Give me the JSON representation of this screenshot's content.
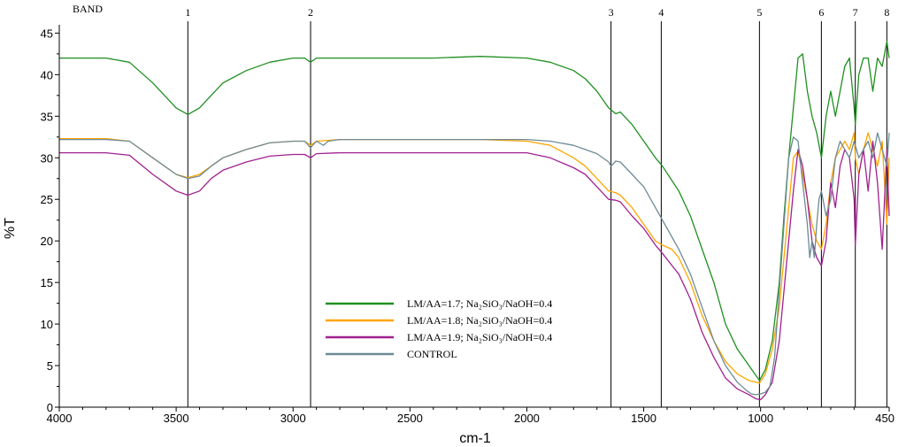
{
  "chart_data": {
    "type": "line",
    "xlabel": "cm-1",
    "ylabel": "%T",
    "xlim": [
      4000,
      450
    ],
    "ylim": [
      0,
      46
    ],
    "x_ticks": [
      4000,
      3500,
      3000,
      2500,
      2000,
      1500,
      1000,
      450
    ],
    "y_ticks": [
      0,
      5,
      10,
      15,
      20,
      25,
      30,
      35,
      40,
      45
    ],
    "band_title": "BAND",
    "bands": [
      {
        "label": "1",
        "x": 3450
      },
      {
        "label": "2",
        "x": 2925
      },
      {
        "label": "3",
        "x": 1640
      },
      {
        "label": "4",
        "x": 1425
      },
      {
        "label": "5",
        "x": 1005
      },
      {
        "label": "6",
        "x": 740
      },
      {
        "label": "7",
        "x": 595
      },
      {
        "label": "8",
        "x": 460
      }
    ],
    "series": [
      {
        "name": "LM/AA=1.7; Na₂SiO₃/NaOH=0.4",
        "color": "#1f8f1f",
        "x": [
          4000,
          3800,
          3700,
          3600,
          3500,
          3450,
          3400,
          3350,
          3300,
          3200,
          3100,
          3000,
          2950,
          2925,
          2900,
          2800,
          2600,
          2400,
          2200,
          2000,
          1900,
          1800,
          1750,
          1700,
          1650,
          1620,
          1600,
          1550,
          1500,
          1450,
          1420,
          1350,
          1300,
          1250,
          1200,
          1150,
          1100,
          1050,
          1020,
          1005,
          980,
          950,
          920,
          900,
          880,
          860,
          840,
          820,
          800,
          780,
          760,
          740,
          720,
          700,
          680,
          660,
          640,
          620,
          600,
          595,
          580,
          560,
          540,
          520,
          500,
          480,
          460,
          450
        ],
        "y": [
          42,
          42,
          41.5,
          39,
          36,
          35.2,
          36,
          37.5,
          39,
          40.5,
          41.5,
          42,
          42,
          41.5,
          42,
          42,
          42,
          42,
          42.2,
          42,
          41.5,
          40.5,
          39.5,
          38,
          36,
          35.3,
          35.5,
          34,
          32,
          30,
          29,
          26,
          23,
          19,
          15,
          10,
          7,
          5,
          3.8,
          3.2,
          4.5,
          8,
          15,
          23,
          30,
          36,
          42,
          42.5,
          38,
          35,
          33,
          30,
          35,
          38,
          35,
          38,
          41,
          42,
          36,
          34,
          40,
          42,
          42,
          38,
          42,
          41,
          44,
          42
        ]
      },
      {
        "name": "LM/AA=1.8; Na₂SiO₃/NaOH=0.4",
        "color": "#ffa500",
        "x": [
          4000,
          3800,
          3700,
          3600,
          3500,
          3450,
          3400,
          3350,
          3300,
          3200,
          3100,
          3000,
          2950,
          2925,
          2900,
          2800,
          2600,
          2400,
          2200,
          2000,
          1900,
          1800,
          1750,
          1700,
          1650,
          1620,
          1600,
          1550,
          1500,
          1450,
          1420,
          1380,
          1350,
          1300,
          1250,
          1200,
          1150,
          1100,
          1050,
          1020,
          1005,
          980,
          950,
          920,
          900,
          880,
          860,
          840,
          820,
          800,
          780,
          760,
          740,
          720,
          700,
          680,
          660,
          640,
          620,
          600,
          595,
          580,
          560,
          540,
          520,
          500,
          480,
          460,
          450
        ],
        "y": [
          32.3,
          32.3,
          32,
          30,
          28,
          27.6,
          28,
          29,
          30,
          31,
          31.8,
          32,
          32,
          31.5,
          32,
          32.2,
          32.2,
          32.2,
          32.2,
          32,
          31.5,
          30,
          29,
          27.5,
          26,
          25.8,
          25.5,
          24,
          22,
          20,
          19.5,
          19,
          18,
          15,
          11,
          8,
          5.5,
          4,
          3.2,
          3.0,
          2.9,
          4,
          7,
          12,
          18,
          24,
          30,
          30.8,
          28,
          25,
          22,
          20,
          19,
          22,
          27,
          30,
          31,
          32,
          31,
          33,
          30,
          28,
          31,
          33,
          31,
          29,
          32,
          22,
          30
        ]
      },
      {
        "name": "LM/AA=1.9; Na₂SiO₃/NaOH=0.4",
        "color": "#a0208f",
        "x": [
          4000,
          3800,
          3700,
          3600,
          3500,
          3450,
          3400,
          3350,
          3300,
          3200,
          3100,
          3000,
          2950,
          2925,
          2900,
          2800,
          2600,
          2400,
          2200,
          2000,
          1900,
          1800,
          1750,
          1700,
          1650,
          1620,
          1600,
          1550,
          1500,
          1450,
          1420,
          1350,
          1300,
          1250,
          1200,
          1150,
          1100,
          1050,
          1020,
          1000,
          980,
          950,
          920,
          900,
          880,
          860,
          840,
          820,
          800,
          780,
          760,
          740,
          720,
          700,
          680,
          660,
          640,
          620,
          600,
          595,
          580,
          560,
          540,
          520,
          500,
          480,
          460,
          450
        ],
        "y": [
          30.6,
          30.6,
          30.3,
          28,
          26,
          25.5,
          26,
          27.5,
          28.5,
          29.5,
          30.2,
          30.4,
          30.4,
          30,
          30.5,
          30.6,
          30.6,
          30.6,
          30.6,
          30.6,
          30,
          28.8,
          28,
          26.5,
          25,
          24.9,
          24.7,
          23,
          21.5,
          19.5,
          18.5,
          16,
          13,
          9,
          6,
          3.5,
          2.2,
          1.5,
          1,
          0.9,
          1.5,
          3,
          8,
          14,
          20,
          26,
          31,
          29,
          25,
          20,
          18,
          17,
          20,
          27,
          24,
          29,
          31,
          30,
          25,
          19.5,
          28,
          31,
          26,
          32,
          27,
          19,
          31,
          23
        ]
      },
      {
        "name": "CONTROL",
        "color": "#6e8a96",
        "x": [
          4000,
          3800,
          3700,
          3600,
          3500,
          3450,
          3400,
          3350,
          3300,
          3200,
          3100,
          3000,
          2950,
          2925,
          2900,
          2870,
          2850,
          2800,
          2600,
          2400,
          2200,
          2000,
          1900,
          1800,
          1750,
          1700,
          1650,
          1640,
          1620,
          1600,
          1550,
          1500,
          1450,
          1400,
          1350,
          1300,
          1250,
          1200,
          1150,
          1100,
          1060,
          1040,
          1020,
          1000,
          980,
          960,
          940,
          920,
          900,
          880,
          860,
          840,
          820,
          800,
          790,
          780,
          770,
          760,
          750,
          740,
          720,
          700,
          680,
          660,
          640,
          620,
          600,
          580,
          560,
          540,
          520,
          500,
          480,
          460,
          450
        ],
        "y": [
          32.2,
          32.2,
          32,
          30,
          28,
          27.5,
          27.8,
          29,
          30,
          31,
          31.8,
          32,
          32,
          31.2,
          32,
          31.5,
          32,
          32.2,
          32.2,
          32.2,
          32.2,
          32.2,
          32,
          31.5,
          31,
          30.5,
          29.5,
          29,
          29.6,
          29.5,
          28,
          26.5,
          24,
          21.5,
          19,
          16,
          12,
          8,
          5,
          3,
          2,
          1.6,
          1.5,
          1.6,
          1.8,
          2.5,
          6,
          14,
          22,
          30,
          32.5,
          32,
          27,
          22,
          18,
          20,
          18,
          22,
          25,
          26,
          23,
          25,
          30,
          32,
          31,
          30,
          32,
          30,
          31,
          32,
          30,
          33,
          31,
          29,
          33
        ]
      }
    ],
    "legend": {
      "placement": "center-bottom"
    }
  }
}
